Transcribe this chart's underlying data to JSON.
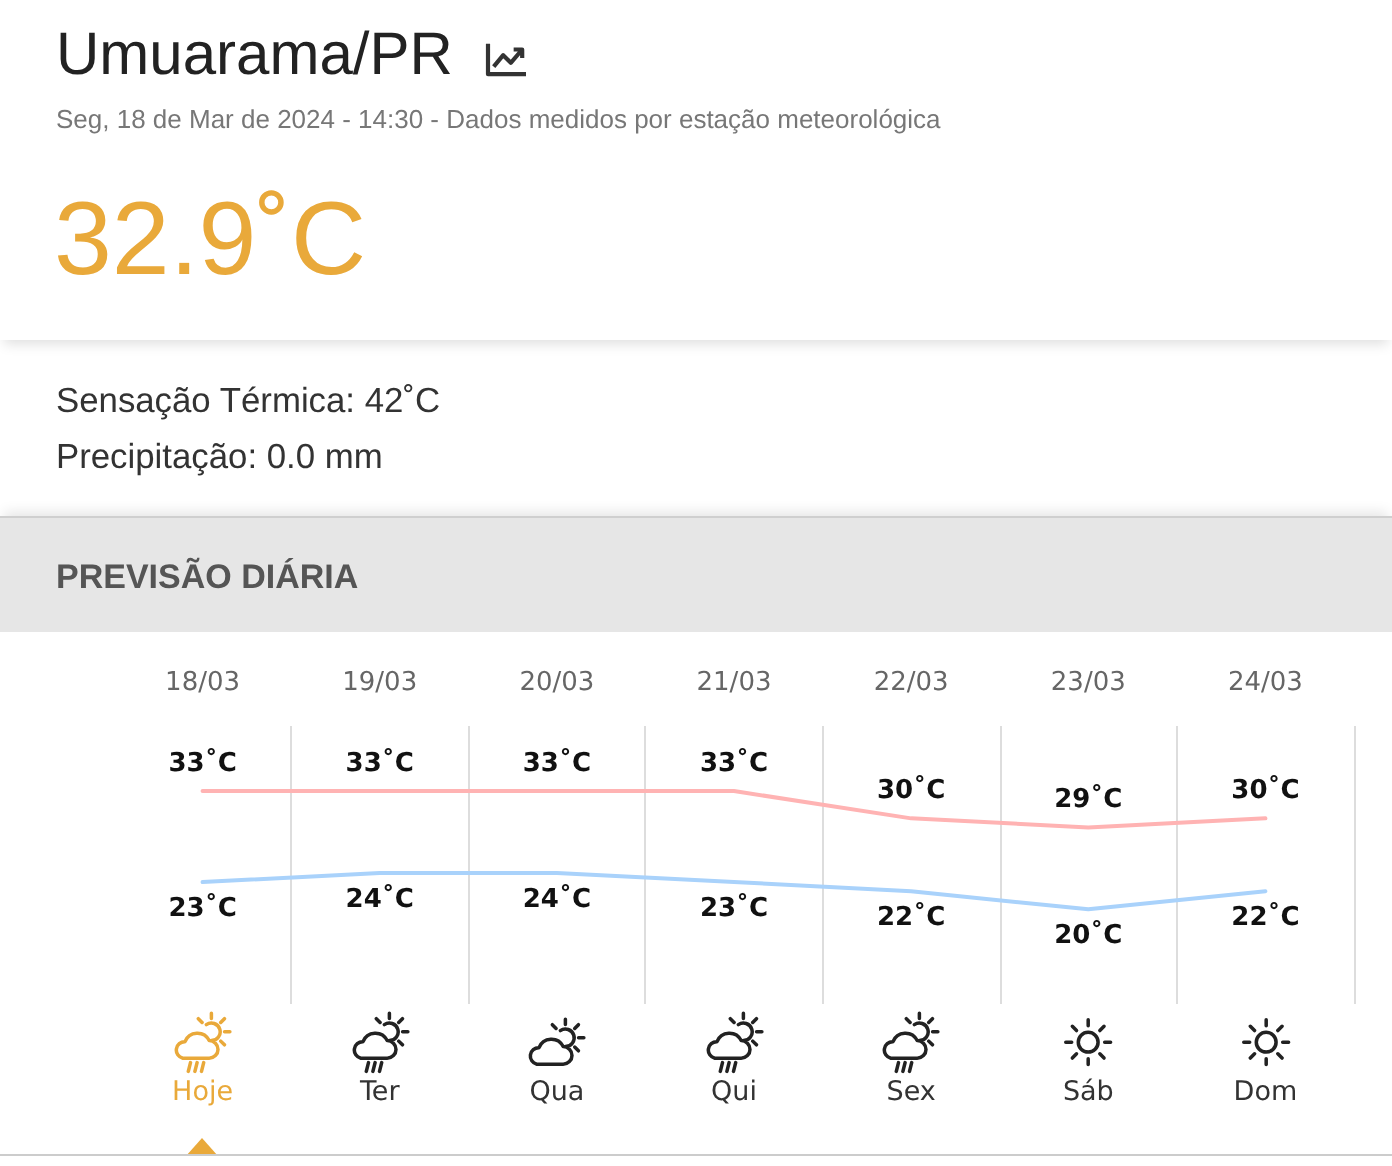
{
  "chart_data": {
    "type": "line",
    "title": "Umuarama/PR",
    "subtitle": "Seg, 18 de Mar de 2024 - 14:30 - Dados medidos por estação meteorológica",
    "categories": [
      "18/03",
      "19/03",
      "20/03",
      "21/03",
      "22/03",
      "23/03",
      "24/03"
    ],
    "series": [
      {
        "color": "#ffb3b3",
        "values": [
          33,
          33,
          33,
          33,
          30,
          29,
          30
        ],
        "value_labels": [
          "33˚C",
          "33˚C",
          "33˚C",
          "33˚C",
          "30˚C",
          "29˚C",
          "30˚C"
        ]
      },
      {
        "color": "#a9d2fb",
        "values": [
          23,
          24,
          24,
          23,
          22,
          20,
          22
        ],
        "value_labels": [
          "23˚C",
          "24˚C",
          "24˚C",
          "23˚C",
          "22˚C",
          "20˚C",
          "22˚C"
        ]
      }
    ],
    "grid": "x",
    "annotations": [
      "32.9˚C",
      "Sensação Térmica: 42˚C",
      "Precipitação: 0.0 mm",
      "PREVISÃO DIÁRIA",
      "Hoje",
      "Ter",
      "Qua",
      "Qui",
      "Sex",
      "Sáb",
      "Dom"
    ]
  }
}
